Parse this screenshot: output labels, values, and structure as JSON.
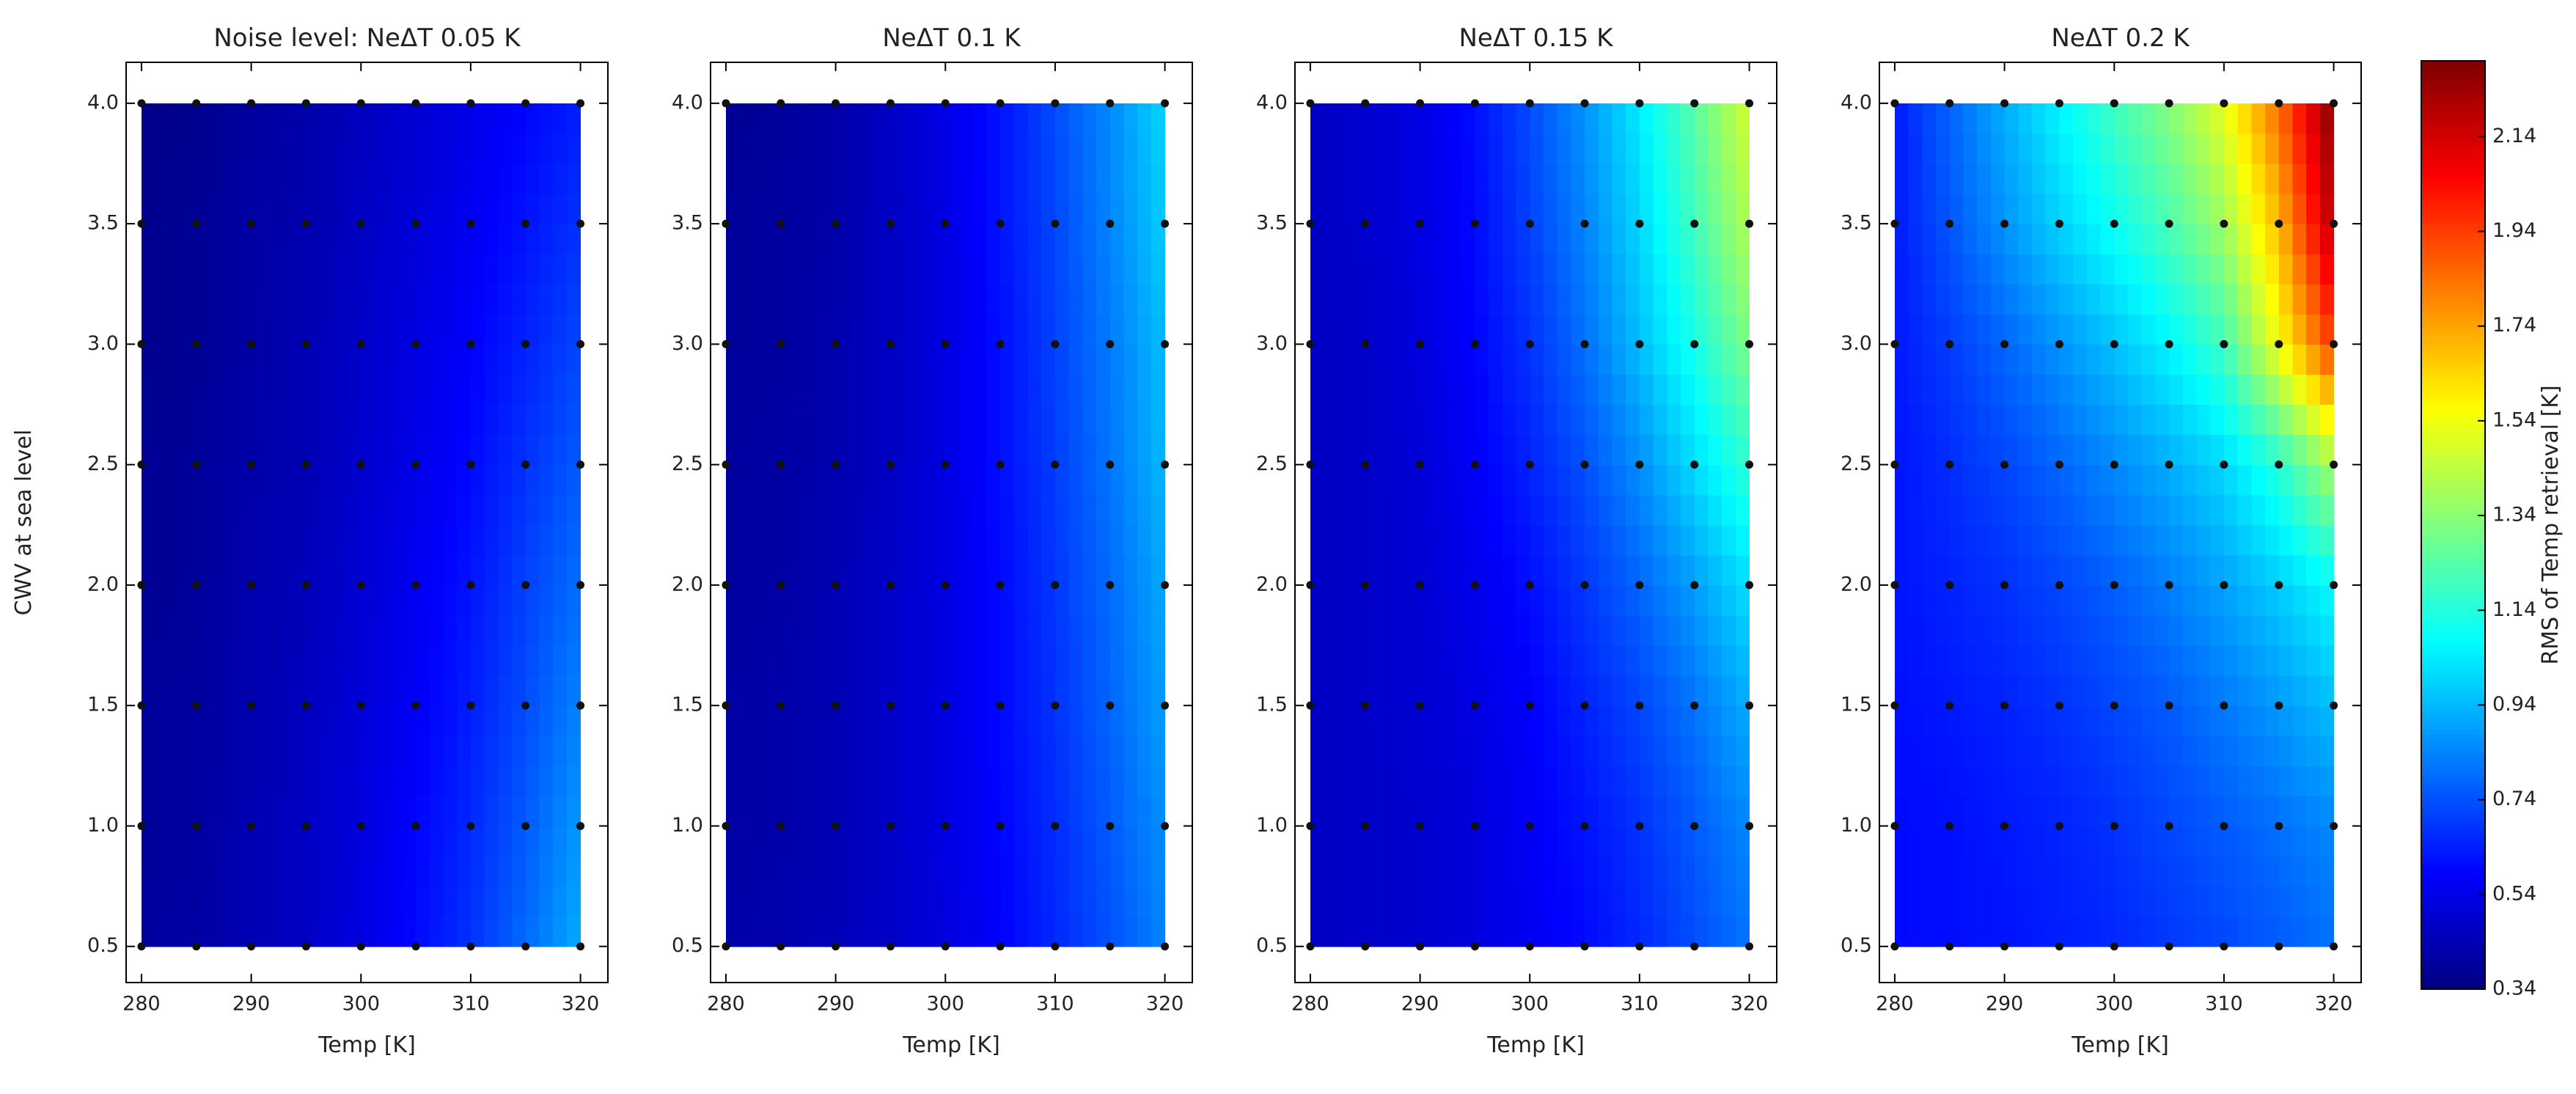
{
  "chart_data": [
    {
      "type": "contour",
      "title": "Noise level: NeΔT 0.05 K",
      "xlabel": "Temp [K]",
      "ylabel": "CWV at sea level",
      "x": [
        280,
        285,
        290,
        295,
        300,
        305,
        310,
        315,
        320
      ],
      "y": [
        0.5,
        1,
        1.5,
        2,
        2.5,
        3,
        3.5,
        4
      ],
      "z": [
        [
          0.4,
          0.41,
          0.44,
          0.47,
          0.53,
          0.6,
          0.68,
          0.79,
          0.92
        ],
        [
          0.39,
          0.4,
          0.44,
          0.47,
          0.52,
          0.59,
          0.66,
          0.76,
          0.88
        ],
        [
          0.39,
          0.4,
          0.43,
          0.46,
          0.51,
          0.57,
          0.64,
          0.73,
          0.84
        ],
        [
          0.38,
          0.39,
          0.43,
          0.45,
          0.5,
          0.56,
          0.62,
          0.71,
          0.8
        ],
        [
          0.38,
          0.39,
          0.42,
          0.44,
          0.49,
          0.54,
          0.6,
          0.68,
          0.76
        ],
        [
          0.37,
          0.38,
          0.41,
          0.44,
          0.48,
          0.53,
          0.58,
          0.65,
          0.72
        ],
        [
          0.37,
          0.38,
          0.41,
          0.43,
          0.47,
          0.51,
          0.56,
          0.62,
          0.68
        ],
        [
          0.36,
          0.37,
          0.4,
          0.42,
          0.46,
          0.5,
          0.54,
          0.59,
          0.64
        ]
      ],
      "xlim": [
        278.6,
        322.5
      ],
      "ylim": [
        0.35,
        4.17
      ],
      "xticks": [
        280,
        290,
        300,
        310,
        320
      ],
      "yticks": [
        0.5,
        {
          "value": 1,
          "label": "1.0"
        },
        1.5,
        {
          "value": 2,
          "label": "2.0"
        },
        2.5,
        {
          "value": 3,
          "label": "3.0"
        },
        3.5,
        {
          "value": 4,
          "label": "4.0"
        }
      ]
    },
    {
      "type": "contour",
      "title": "NeΔT 0.1 K",
      "xlabel": "Temp [K]",
      "x": [
        280,
        285,
        290,
        295,
        300,
        305,
        310,
        315,
        320
      ],
      "y": [
        0.5,
        1,
        1.5,
        2,
        2.5,
        3,
        3.5,
        4
      ],
      "z": [
        [
          0.42,
          0.43,
          0.45,
          0.48,
          0.52,
          0.58,
          0.66,
          0.74,
          0.84
        ],
        [
          0.41,
          0.42,
          0.44,
          0.48,
          0.53,
          0.59,
          0.67,
          0.76,
          0.86
        ],
        [
          0.41,
          0.42,
          0.44,
          0.48,
          0.53,
          0.6,
          0.68,
          0.78,
          0.89
        ],
        [
          0.4,
          0.41,
          0.44,
          0.48,
          0.53,
          0.6,
          0.69,
          0.79,
          0.91
        ],
        [
          0.4,
          0.41,
          0.43,
          0.47,
          0.53,
          0.61,
          0.7,
          0.81,
          0.94
        ],
        [
          0.39,
          0.4,
          0.43,
          0.47,
          0.53,
          0.61,
          0.71,
          0.82,
          0.95
        ],
        [
          0.39,
          0.4,
          0.42,
          0.47,
          0.53,
          0.62,
          0.72,
          0.84,
          0.98
        ],
        [
          0.38,
          0.39,
          0.42,
          0.47,
          0.54,
          0.62,
          0.73,
          0.85,
          1.0
        ]
      ],
      "xlim": [
        278.6,
        322.5
      ],
      "ylim": [
        0.35,
        4.17
      ],
      "xticks": [
        280,
        290,
        300,
        310,
        320
      ],
      "yticks": [
        0.5,
        {
          "value": 1,
          "label": "1.0"
        },
        1.5,
        {
          "value": 2,
          "label": "2.0"
        },
        2.5,
        {
          "value": 3,
          "label": "3.0"
        },
        3.5,
        {
          "value": 4,
          "label": "4.0"
        }
      ]
    },
    {
      "type": "contour",
      "title": "NeΔT 0.15 K",
      "xlabel": "Temp [K]",
      "x": [
        280,
        285,
        290,
        295,
        300,
        305,
        310,
        315,
        320
      ],
      "y": [
        0.5,
        1,
        1.5,
        2,
        2.5,
        3,
        3.5,
        4
      ],
      "z": [
        [
          0.47,
          0.48,
          0.49,
          0.52,
          0.56,
          0.6,
          0.66,
          0.73,
          0.81
        ],
        [
          0.47,
          0.48,
          0.49,
          0.52,
          0.57,
          0.62,
          0.68,
          0.76,
          0.85
        ],
        [
          0.47,
          0.48,
          0.5,
          0.53,
          0.58,
          0.65,
          0.72,
          0.81,
          0.92
        ],
        [
          0.47,
          0.48,
          0.5,
          0.55,
          0.61,
          0.69,
          0.78,
          0.89,
          1.02
        ],
        [
          0.47,
          0.48,
          0.51,
          0.57,
          0.65,
          0.74,
          0.86,
          1.01,
          1.17
        ],
        [
          0.47,
          0.48,
          0.52,
          0.59,
          0.68,
          0.8,
          0.95,
          1.12,
          1.32
        ],
        [
          0.47,
          0.49,
          0.53,
          0.6,
          0.71,
          0.84,
          1.0,
          1.2,
          1.42
        ],
        [
          0.47,
          0.49,
          0.53,
          0.61,
          0.73,
          0.87,
          1.04,
          1.25,
          1.49
        ]
      ],
      "xlim": [
        278.6,
        322.5
      ],
      "ylim": [
        0.35,
        4.17
      ],
      "xticks": [
        280,
        290,
        300,
        310,
        320
      ],
      "yticks": [
        0.5,
        {
          "value": 1,
          "label": "1.0"
        },
        1.5,
        {
          "value": 2,
          "label": "2.0"
        },
        2.5,
        {
          "value": 3,
          "label": "3.0"
        },
        3.5,
        {
          "value": 4,
          "label": "4.0"
        }
      ]
    },
    {
      "type": "contour",
      "title": "NeΔT 0.2 K",
      "xlabel": "Temp [K]",
      "x": [
        280,
        285,
        290,
        295,
        300,
        305,
        310,
        315,
        320
      ],
      "y": [
        0.5,
        1,
        1.5,
        2,
        2.5,
        3,
        3.5,
        4
      ],
      "z": [
        [
          0.6,
          0.61,
          0.62,
          0.64,
          0.66,
          0.69,
          0.72,
          0.76,
          0.8
        ],
        [
          0.6,
          0.61,
          0.63,
          0.65,
          0.68,
          0.72,
          0.76,
          0.8,
          0.85
        ],
        [
          0.61,
          0.63,
          0.65,
          0.68,
          0.72,
          0.76,
          0.82,
          0.88,
          0.95
        ],
        [
          0.62,
          0.65,
          0.68,
          0.72,
          0.77,
          0.83,
          0.9,
          0.98,
          1.08
        ],
        [
          0.62,
          0.67,
          0.72,
          0.78,
          0.85,
          0.92,
          1.0,
          1.15,
          1.4
        ],
        [
          0.63,
          0.7,
          0.78,
          0.87,
          0.96,
          1.06,
          1.2,
          1.55,
          1.95
        ],
        [
          0.63,
          0.75,
          0.87,
          0.99,
          1.1,
          1.22,
          1.38,
          1.7,
          2.2
        ],
        [
          0.63,
          0.78,
          0.92,
          1.06,
          1.2,
          1.33,
          1.52,
          1.85,
          2.3
        ]
      ],
      "xlim": [
        278.6,
        322.5
      ],
      "ylim": [
        0.35,
        4.17
      ],
      "xticks": [
        280,
        290,
        300,
        310,
        320
      ],
      "yticks": [
        0.5,
        {
          "value": 1,
          "label": "1.0"
        },
        1.5,
        {
          "value": 2,
          "label": "2.0"
        },
        2.5,
        {
          "value": 3,
          "label": "3.0"
        },
        3.5,
        {
          "value": 4,
          "label": "4.0"
        }
      ]
    },
    {
      "type": "colorbar",
      "label": "RMS of Temp retrieval [K]",
      "colormap": "jet",
      "zlim": [
        0.34,
        2.3
      ],
      "ticks": [
        0.34,
        0.54,
        0.74,
        0.94,
        1.14,
        1.34,
        1.54,
        1.74,
        1.94,
        2.14
      ]
    }
  ]
}
